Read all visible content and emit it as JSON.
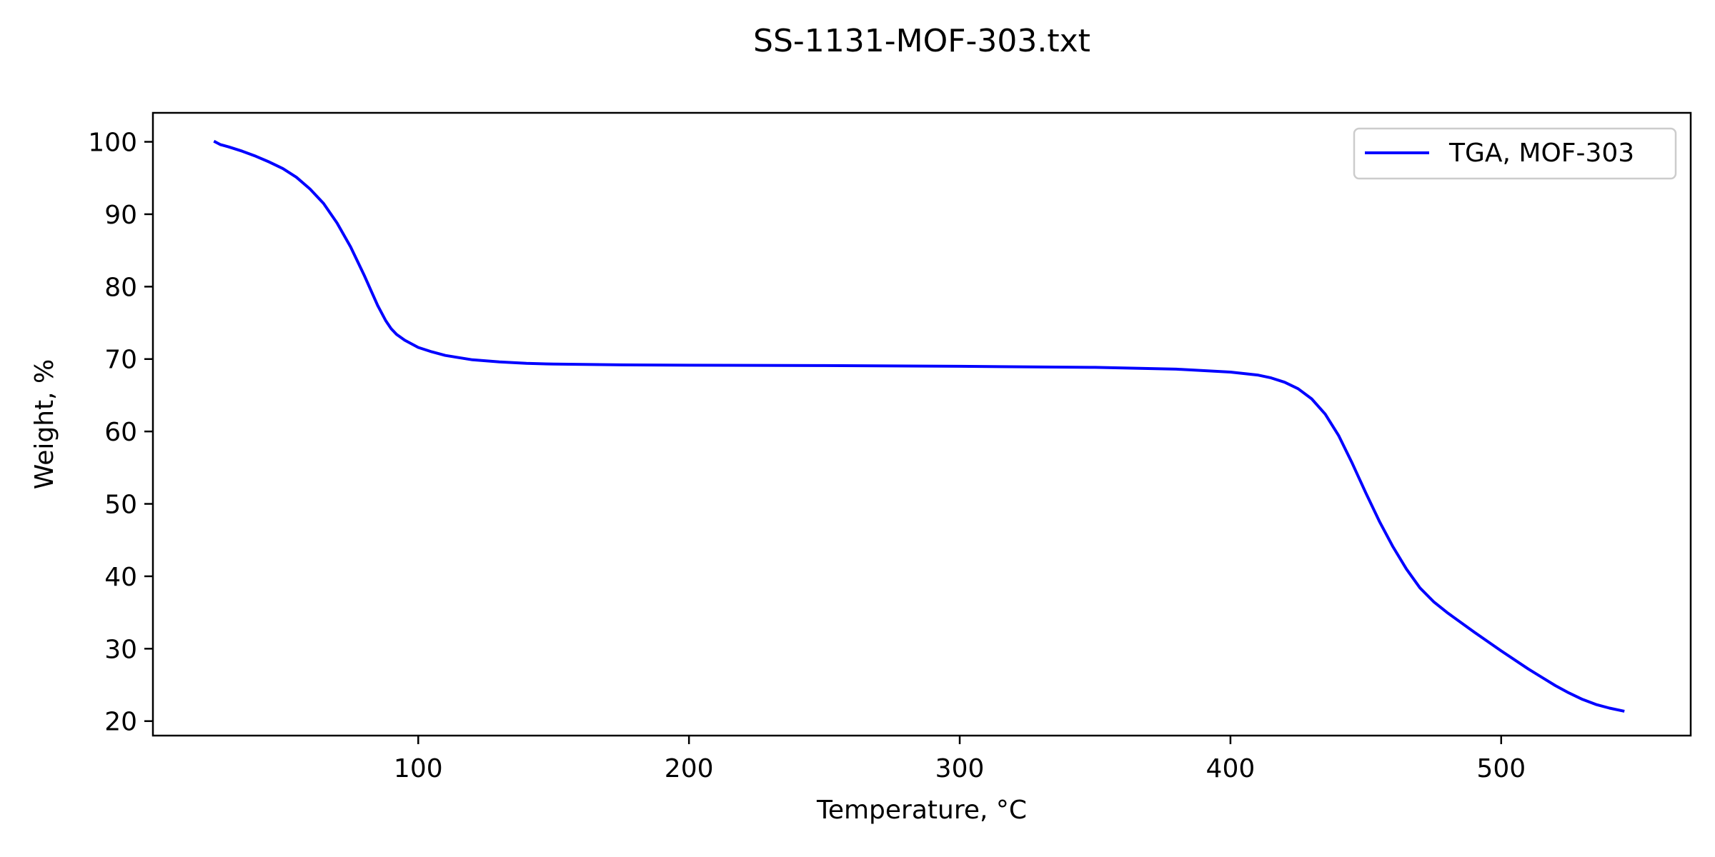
{
  "chart_data": {
    "type": "line",
    "title": "SS-1131-MOF-303.txt",
    "xlabel": "Temperature, °C",
    "ylabel": "Weight, %",
    "xlim": [
      2,
      570
    ],
    "ylim": [
      18,
      104
    ],
    "xticks": [
      100,
      200,
      300,
      400,
      500
    ],
    "yticks": [
      20,
      30,
      40,
      50,
      60,
      70,
      80,
      90,
      100
    ],
    "grid": false,
    "legend_position": "top-right",
    "series": [
      {
        "name": "TGA, MOF-303",
        "color": "#0000ff",
        "x": [
          25,
          26,
          27,
          28,
          30,
          35,
          40,
          45,
          50,
          55,
          60,
          65,
          70,
          75,
          80,
          85,
          88,
          90,
          92,
          95,
          100,
          105,
          110,
          120,
          130,
          140,
          150,
          175,
          200,
          250,
          300,
          350,
          380,
          400,
          410,
          415,
          420,
          425,
          430,
          435,
          440,
          445,
          450,
          455,
          460,
          465,
          470,
          475,
          480,
          490,
          500,
          510,
          520,
          525,
          530,
          535,
          540,
          545
        ],
        "y": [
          100.0,
          99.8,
          99.6,
          99.5,
          99.3,
          98.7,
          98.0,
          97.2,
          96.3,
          95.1,
          93.5,
          91.5,
          88.8,
          85.5,
          81.6,
          77.4,
          75.3,
          74.2,
          73.4,
          72.6,
          71.6,
          71.0,
          70.5,
          69.9,
          69.6,
          69.4,
          69.3,
          69.2,
          69.15,
          69.1,
          69.0,
          68.85,
          68.6,
          68.2,
          67.8,
          67.4,
          66.8,
          65.9,
          64.5,
          62.4,
          59.4,
          55.6,
          51.5,
          47.6,
          44.1,
          41.0,
          38.4,
          36.5,
          35.0,
          32.3,
          29.7,
          27.2,
          24.9,
          23.9,
          23.0,
          22.3,
          21.8,
          21.4
        ]
      }
    ]
  }
}
